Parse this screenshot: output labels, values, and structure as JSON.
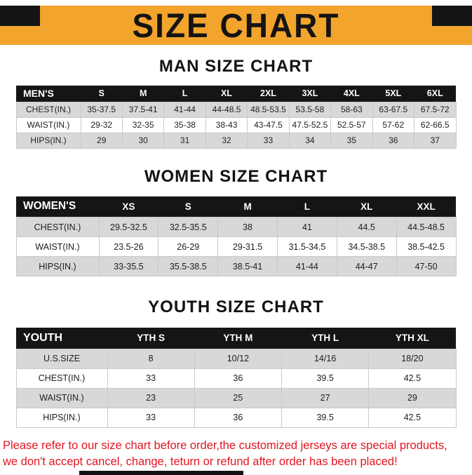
{
  "banner": {
    "title": "SIZE CHART"
  },
  "colors": {
    "banner_bg": "#F2A42C",
    "header_bg": "#151515",
    "stripe": "#D8D8D8",
    "footer_text": "#E31421"
  },
  "sections": [
    {
      "heading": "MAN SIZE CHART",
      "table": {
        "header": [
          "MEN'S",
          "S",
          "M",
          "L",
          "XL",
          "2XL",
          "3XL",
          "4XL",
          "5XL",
          "6XL"
        ],
        "rows": [
          [
            "CHEST(IN.)",
            "35-37.5",
            "37.5-41",
            "41-44",
            "44-48.5",
            "48.5-53.5",
            "53.5-58",
            "58-63",
            "63-67.5",
            "67.5-72"
          ],
          [
            "WAIST(IN.)",
            "29-32",
            "32-35",
            "35-38",
            "38-43",
            "43-47.5",
            "47.5-52.5",
            "52.5-57",
            "57-62",
            "62-66.5"
          ],
          [
            "HIPS(IN.)",
            "29",
            "30",
            "31",
            "32",
            "33",
            "34",
            "35",
            "36",
            "37"
          ]
        ]
      }
    },
    {
      "heading": "WOMEN SIZE CHART",
      "table": {
        "header": [
          "WOMEN'S",
          "XS",
          "S",
          "M",
          "L",
          "XL",
          "XXL"
        ],
        "rows": [
          [
            "CHEST(IN.)",
            "29.5-32.5",
            "32.5-35.5",
            "38",
            "41",
            "44.5",
            "44.5-48.5"
          ],
          [
            "WAIST(IN.)",
            "23.5-26",
            "26-29",
            "29-31.5",
            "31.5-34.5",
            "34.5-38.5",
            "38.5-42.5"
          ],
          [
            "HIPS(IN.)",
            "33-35.5",
            "35.5-38.5",
            "38.5-41",
            "41-44",
            "44-47",
            "47-50"
          ]
        ]
      }
    },
    {
      "heading": "YOUTH SIZE CHART",
      "table": {
        "header": [
          "YOUTH",
          "YTH S",
          "YTH M",
          "YTH L",
          "YTH XL"
        ],
        "rows": [
          [
            "U.S.SIZE",
            "8",
            "10/12",
            "14/16",
            "18/20"
          ],
          [
            "CHEST(IN.)",
            "33",
            "36",
            "39.5",
            "42.5"
          ],
          [
            "WAIST(IN.)",
            "23",
            "25",
            "27",
            "29"
          ],
          [
            "HIPS(IN.)",
            "33",
            "36",
            "39.5",
            "42.5"
          ]
        ]
      }
    }
  ],
  "footer": {
    "line1": "Please refer to our size chart before order,the customized jerseys are special products,",
    "line2": "we don't accept cancel, change, teturn or refund after order has been placed!"
  }
}
